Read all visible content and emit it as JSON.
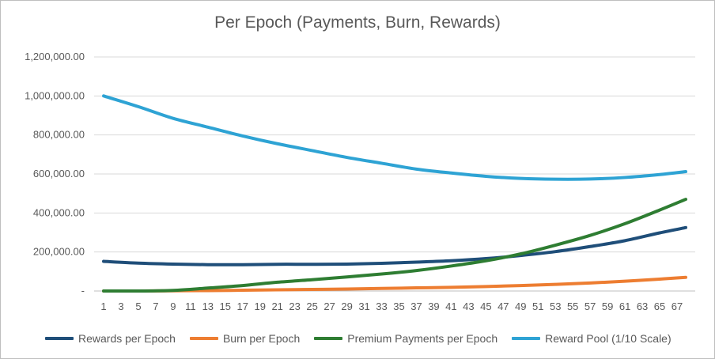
{
  "chart_data": {
    "type": "line",
    "title": "Per Epoch (Payments, Burn, Rewards)",
    "xlabel": "",
    "ylabel": "",
    "x_start": 1,
    "x_end": 68,
    "x_tick_labels": [
      "1",
      "3",
      "5",
      "7",
      "9",
      "11",
      "13",
      "15",
      "17",
      "19",
      "21",
      "23",
      "25",
      "27",
      "29",
      "31",
      "33",
      "35",
      "37",
      "39",
      "41",
      "43",
      "45",
      "47",
      "49",
      "51",
      "53",
      "55",
      "57",
      "59",
      "61",
      "63",
      "65",
      "67"
    ],
    "ylim": [
      0,
      1200000
    ],
    "y_tick_labels": [
      "-",
      "200,000.00",
      "400,000.00",
      "600,000.00",
      "800,000.00",
      "1,000,000.00",
      "1,200,000.00"
    ],
    "grid": true,
    "legend_position": "bottom",
    "series": [
      {
        "name": "Rewards per Epoch",
        "color": "#1f4e79",
        "x": [
          1,
          5,
          9,
          13,
          17,
          21,
          25,
          29,
          33,
          37,
          41,
          45,
          49,
          53,
          57,
          61,
          65,
          68
        ],
        "values": [
          152000,
          143000,
          138000,
          135000,
          135000,
          137000,
          137000,
          138000,
          142000,
          148000,
          155000,
          166000,
          182000,
          202000,
          228000,
          258000,
          298000,
          325000
        ]
      },
      {
        "name": "Burn per Epoch",
        "color": "#ed7d31",
        "x": [
          1,
          5,
          9,
          13,
          17,
          21,
          25,
          29,
          33,
          37,
          41,
          45,
          49,
          53,
          57,
          61,
          65,
          68
        ],
        "values": [
          0,
          0,
          1000,
          2000,
          4000,
          6000,
          8000,
          10000,
          13000,
          16000,
          19000,
          23000,
          28000,
          34000,
          41000,
          50000,
          61000,
          70000
        ]
      },
      {
        "name": "Premium Payments per Epoch",
        "color": "#2e7d32",
        "x": [
          1,
          5,
          9,
          13,
          17,
          21,
          25,
          29,
          33,
          37,
          41,
          45,
          49,
          53,
          57,
          61,
          65,
          68
        ],
        "values": [
          0,
          0,
          3000,
          15000,
          28000,
          45000,
          58000,
          72000,
          87000,
          105000,
          128000,
          155000,
          190000,
          235000,
          285000,
          345000,
          415000,
          470000
        ]
      },
      {
        "name": "Reward Pool (1/10 Scale)",
        "color": "#2ea3d4",
        "x": [
          1,
          5,
          9,
          13,
          17,
          21,
          25,
          29,
          33,
          37,
          41,
          45,
          49,
          53,
          57,
          61,
          65,
          68
        ],
        "values": [
          1000000,
          945000,
          885000,
          840000,
          795000,
          755000,
          720000,
          685000,
          655000,
          625000,
          605000,
          588000,
          577000,
          573000,
          574000,
          582000,
          597000,
          612000
        ]
      }
    ]
  }
}
